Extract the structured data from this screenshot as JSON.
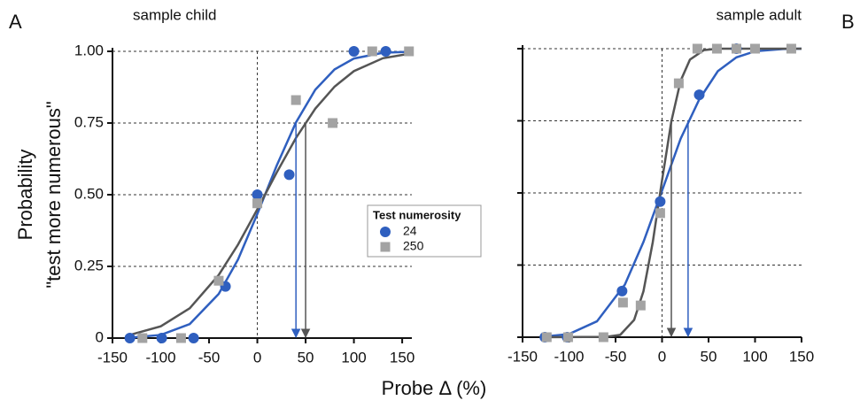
{
  "chart_data": [
    {
      "type": "scatter",
      "panel": "A",
      "title": "sample child",
      "ylabel": [
        "Probability",
        "\"test more numerous\""
      ],
      "xlabel": "Probe Δ (%)",
      "xlim": [
        -150,
        160
      ],
      "ylim": [
        0,
        1
      ],
      "xticks": [
        -150,
        -100,
        -50,
        0,
        50,
        100,
        150
      ],
      "yticks": [
        {
          "value": 0,
          "label": "0"
        },
        {
          "value": 0.25,
          "label": "0.25"
        },
        {
          "value": 0.5,
          "label": "0.50"
        },
        {
          "value": 0.75,
          "label": "0.75"
        },
        {
          "value": 1,
          "label": "1.00"
        }
      ],
      "show_ytick_labels": true,
      "grid": true,
      "vline": 0,
      "legend": "lower right",
      "legend_title": "Test numerosity",
      "series": [
        {
          "name": "24",
          "color": "#2f5fbf",
          "marker": "circle",
          "x": [
            -132,
            -99,
            -66,
            -33,
            0,
            33,
            100,
            133
          ],
          "values": [
            0,
            0,
            0,
            0.18,
            0.5,
            0.57,
            1,
            1
          ],
          "fit": {
            "color": "#2f5fbf",
            "x": [
              -130,
              -100,
              -70,
              -40,
              -20,
              0,
              20,
              40,
              60,
              80,
              100,
              130,
              160
            ],
            "values": [
              0.002,
              0.011,
              0.049,
              0.154,
              0.274,
              0.433,
              0.601,
              0.752,
              0.866,
              0.937,
              0.975,
              0.995,
              0.999
            ]
          },
          "arrow_x": 40
        },
        {
          "name": "250",
          "color": "#a3a3a3",
          "marker": "square",
          "x": [
            -119,
            -79,
            -40,
            0,
            40,
            78,
            119,
            157
          ],
          "values": [
            0,
            0,
            0.2,
            0.47,
            0.83,
            0.75,
            1,
            1
          ],
          "fit": {
            "color": "#555555",
            "x": [
              -130,
              -100,
              -70,
              -40,
              -20,
              0,
              20,
              40,
              60,
              80,
              100,
              130,
              160
            ],
            "values": [
              0.013,
              0.041,
              0.104,
              0.22,
              0.326,
              0.449,
              0.577,
              0.698,
              0.8,
              0.877,
              0.931,
              0.976,
              0.993
            ]
          },
          "arrow_x": 50
        }
      ]
    },
    {
      "type": "scatter",
      "panel": "B",
      "title": "sample adult",
      "xlim": [
        -150,
        150
      ],
      "ylim": [
        0,
        1
      ],
      "xticks": [
        -150,
        -100,
        -50,
        0,
        50,
        100,
        150
      ],
      "yticks": [
        0,
        0.25,
        0.5,
        0.75,
        1
      ],
      "show_ytick_labels": false,
      "grid": true,
      "vline": 0,
      "series": [
        {
          "color": "#2f5fbf",
          "marker": "circle",
          "x": [
            -126,
            -102,
            -43,
            -2,
            40,
            80
          ],
          "values": [
            0,
            0,
            0.16,
            0.47,
            0.84,
            1
          ],
          "fit": {
            "color": "#2f5fbf",
            "x": [
              -130,
              -100,
              -70,
              -40,
              -20,
              0,
              20,
              40,
              60,
              80,
              100,
              130,
              150
            ],
            "values": [
              0.001,
              0.011,
              0.055,
              0.182,
              0.33,
              0.508,
              0.688,
              0.824,
              0.922,
              0.97,
              0.991,
              0.999,
              1
            ]
          },
          "arrow_x": 28
        },
        {
          "color": "#a3a3a3",
          "marker": "square",
          "x": [
            -124,
            -101,
            -63,
            -42,
            -23,
            -2,
            18,
            38,
            59,
            80,
            100,
            139
          ],
          "values": [
            0,
            0,
            0,
            0.12,
            0.11,
            0.43,
            0.88,
            1,
            1,
            1,
            1,
            1
          ],
          "fit": {
            "color": "#555555",
            "x": [
              -130,
              -60,
              -45,
              -30,
              -20,
              -10,
              0,
              10,
              20,
              30,
              45,
              60,
              150
            ],
            "values": [
              0,
              0.001,
              0.008,
              0.06,
              0.159,
              0.329,
              0.544,
              0.748,
              0.889,
              0.962,
              0.995,
              1,
              1
            ]
          },
          "arrow_x": 10
        }
      ]
    }
  ]
}
